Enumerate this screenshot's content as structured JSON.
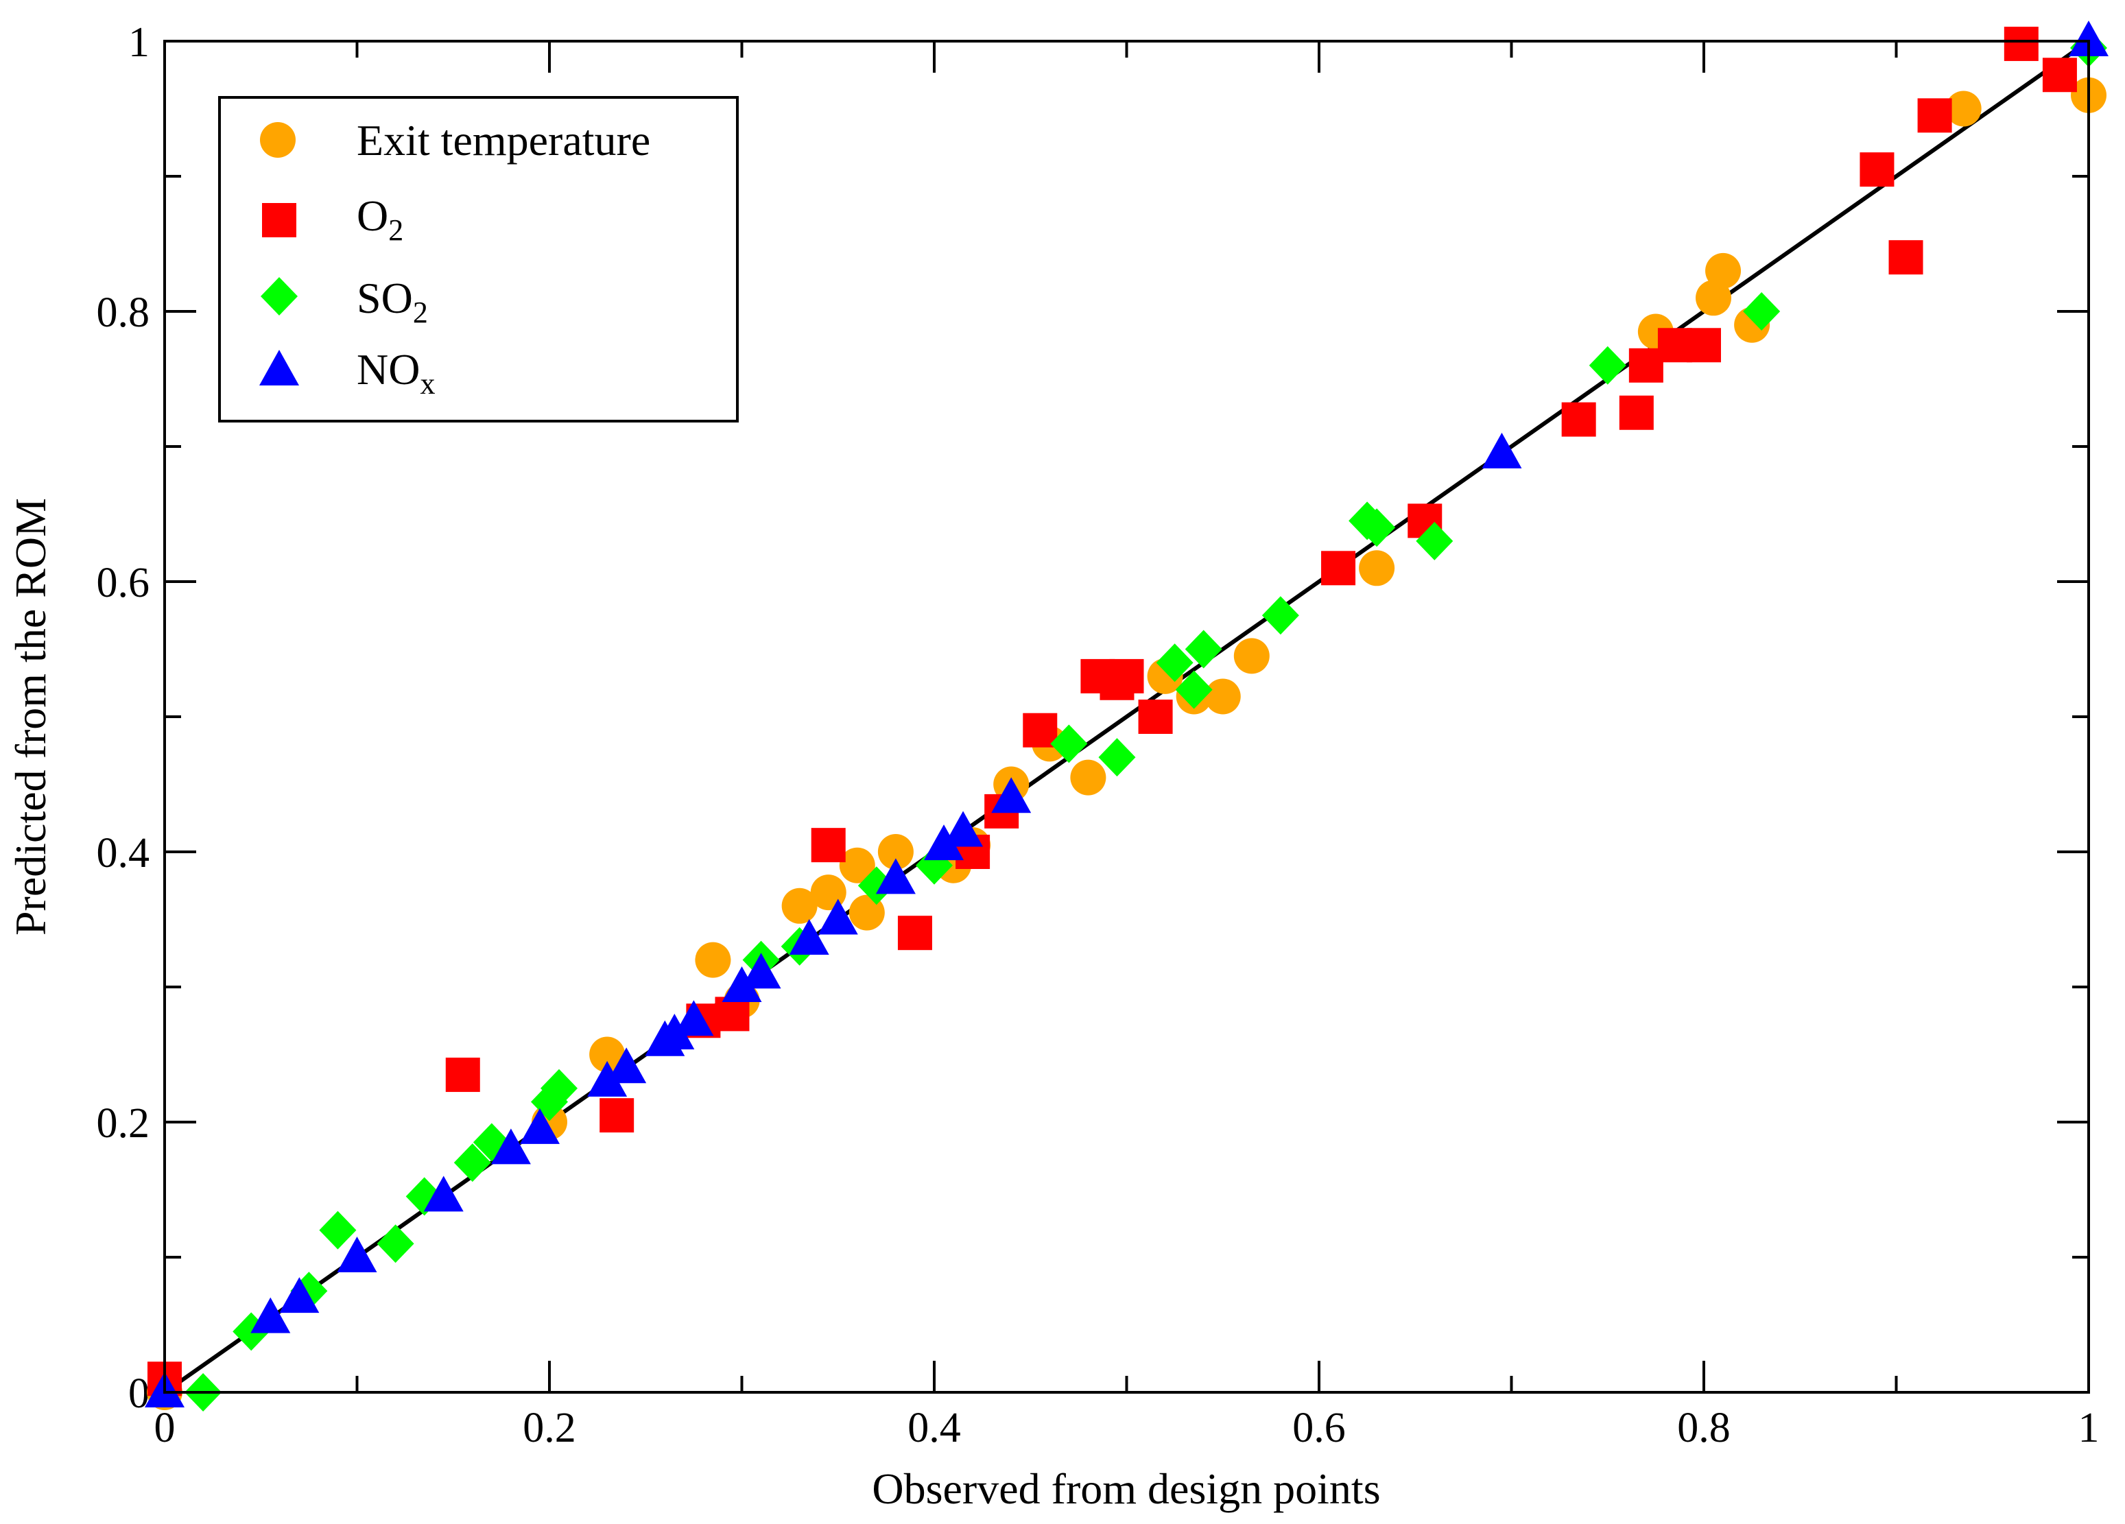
{
  "chart_data": {
    "type": "scatter",
    "title": "",
    "xlabel": "Observed from design points",
    "ylabel": "Predicted from the ROM",
    "xlim": [
      0,
      1
    ],
    "ylim": [
      0,
      1
    ],
    "x_ticks": [
      "0",
      "0.2",
      "0.4",
      "0.6",
      "0.8",
      "1"
    ],
    "y_ticks": [
      "0",
      "0.2",
      "0.4",
      "0.6",
      "0.8",
      "1"
    ],
    "grid": false,
    "legend_position": "top-left",
    "reference_line": {
      "x": [
        0,
        1
      ],
      "y": [
        0,
        1
      ],
      "color": "#000000"
    },
    "series": [
      {
        "name": "Exit temperature",
        "marker": "circle",
        "color": "#FFA500",
        "x": [
          0.0,
          0.2,
          0.23,
          0.285,
          0.3,
          0.33,
          0.345,
          0.36,
          0.365,
          0.38,
          0.41,
          0.42,
          0.44,
          0.46,
          0.48,
          0.52,
          0.535,
          0.55,
          0.565,
          0.63,
          0.775,
          0.805,
          0.81,
          0.825,
          0.935,
          1.0
        ],
        "y": [
          0.0,
          0.2,
          0.25,
          0.32,
          0.29,
          0.36,
          0.37,
          0.39,
          0.355,
          0.4,
          0.39,
          0.405,
          0.45,
          0.48,
          0.455,
          0.53,
          0.515,
          0.515,
          0.545,
          0.61,
          0.785,
          0.81,
          0.83,
          0.79,
          0.95,
          0.96
        ]
      },
      {
        "name": "O",
        "sub": "2",
        "marker": "square",
        "color": "#FF0000",
        "x": [
          0.0,
          0.155,
          0.235,
          0.28,
          0.295,
          0.345,
          0.39,
          0.42,
          0.435,
          0.455,
          0.485,
          0.495,
          0.5,
          0.515,
          0.61,
          0.655,
          0.735,
          0.765,
          0.77,
          0.785,
          0.8,
          0.89,
          0.905,
          0.92,
          0.965,
          0.985
        ],
        "y": [
          0.01,
          0.235,
          0.205,
          0.275,
          0.28,
          0.405,
          0.34,
          0.4,
          0.43,
          0.49,
          0.53,
          0.525,
          0.53,
          0.5,
          0.61,
          0.645,
          0.72,
          0.725,
          0.76,
          0.775,
          0.775,
          0.905,
          0.84,
          0.945,
          0.998,
          0.975
        ]
      },
      {
        "name": "SO",
        "sub": "2",
        "marker": "diamond",
        "color": "#00FF00",
        "x": [
          0.02,
          0.045,
          0.075,
          0.09,
          0.12,
          0.135,
          0.16,
          0.17,
          0.2,
          0.205,
          0.31,
          0.33,
          0.37,
          0.4,
          0.47,
          0.495,
          0.525,
          0.535,
          0.54,
          0.58,
          0.625,
          0.63,
          0.66,
          0.75,
          0.83,
          1.0
        ],
        "y": [
          0.0,
          0.045,
          0.075,
          0.12,
          0.11,
          0.145,
          0.17,
          0.185,
          0.215,
          0.225,
          0.32,
          0.33,
          0.375,
          0.39,
          0.48,
          0.47,
          0.54,
          0.52,
          0.55,
          0.575,
          0.645,
          0.64,
          0.63,
          0.76,
          0.8,
          0.995
        ]
      },
      {
        "name": "NO",
        "sub": "x",
        "marker": "triangle",
        "color": "#0000FF",
        "x": [
          0.0,
          0.055,
          0.07,
          0.1,
          0.145,
          0.18,
          0.195,
          0.23,
          0.24,
          0.26,
          0.265,
          0.275,
          0.3,
          0.31,
          0.335,
          0.35,
          0.38,
          0.405,
          0.415,
          0.44,
          0.695,
          1.0
        ],
        "y": [
          0.0,
          0.055,
          0.07,
          0.1,
          0.145,
          0.18,
          0.195,
          0.23,
          0.24,
          0.26,
          0.265,
          0.275,
          0.3,
          0.31,
          0.335,
          0.35,
          0.38,
          0.405,
          0.415,
          0.44,
          0.695,
          1.0
        ]
      }
    ]
  }
}
